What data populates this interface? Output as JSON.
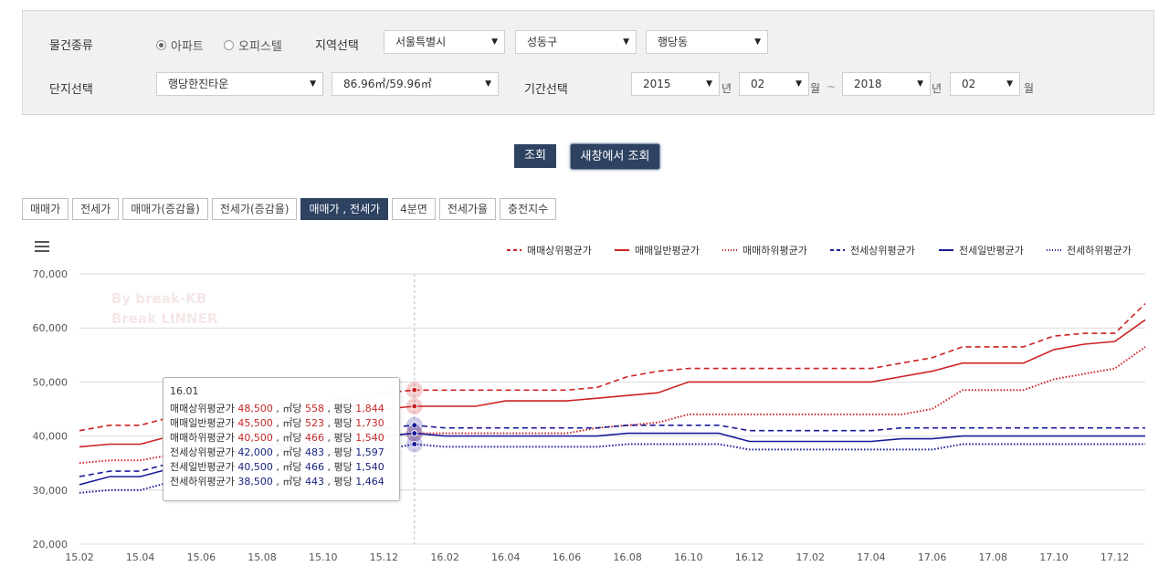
{
  "filters": {
    "property_type_label": "물건종류",
    "property_options": [
      {
        "label": "아파트",
        "selected": true
      },
      {
        "label": "오피스텔",
        "selected": false
      }
    ],
    "region_label": "지역선택",
    "region_city": "서울특별시",
    "region_district": "성동구",
    "region_dong": "행당동",
    "complex_label": "단지선택",
    "complex_value": "행당한진타운",
    "area_value": "86.96㎡/59.96㎡",
    "period_label": "기간선택",
    "start_year": "2015",
    "year_unit": "년",
    "start_month": "02",
    "month_unit": "월",
    "range_sep": "~",
    "end_year": "2018",
    "end_month": "02"
  },
  "actions": {
    "query_label": "조회",
    "new_window_label": "새창에서 조회"
  },
  "tabs": [
    {
      "label": "매매가",
      "active": false
    },
    {
      "label": "전세가",
      "active": false
    },
    {
      "label": "매매가(증감율)",
      "active": false
    },
    {
      "label": "전세가(증감율)",
      "active": false
    },
    {
      "label": "매매가 , 전세가",
      "active": true
    },
    {
      "label": "4분면",
      "active": false
    },
    {
      "label": "전세가율",
      "active": false
    },
    {
      "label": "충전지수",
      "active": false
    }
  ],
  "watermark": {
    "line1": "By break-KB",
    "line2": "Break LINNER"
  },
  "chart_data": {
    "type": "line",
    "ylim": [
      20000,
      70000
    ],
    "yticks": [
      "20,000",
      "30,000",
      "40,000",
      "50,000",
      "60,000",
      "70,000"
    ],
    "x_tick_labels": [
      "15.02",
      "15.04",
      "15.06",
      "15.08",
      "15.10",
      "15.12",
      "16.02",
      "16.04",
      "16.06",
      "16.08",
      "16.10",
      "16.12",
      "17.02",
      "17.04",
      "17.06",
      "17.08",
      "17.10",
      "17.12"
    ],
    "x": [
      "15.02",
      "15.03",
      "15.04",
      "15.05",
      "15.06",
      "15.07",
      "15.08",
      "15.09",
      "15.10",
      "15.11",
      "15.12",
      "16.01",
      "16.02",
      "16.03",
      "16.04",
      "16.05",
      "16.06",
      "16.07",
      "16.08",
      "16.09",
      "16.10",
      "16.11",
      "16.12",
      "17.01",
      "17.02",
      "17.03",
      "17.04",
      "17.05",
      "17.06",
      "17.07",
      "17.08",
      "17.09",
      "17.10",
      "17.11",
      "17.12",
      "18.01"
    ],
    "legend_position": "top-right",
    "grid": true,
    "series": [
      {
        "name": "매매상위평균가",
        "color": "#cc2222",
        "dash": "dashed",
        "values": [
          41000,
          42000,
          42000,
          43500,
          44500,
          45000,
          45500,
          46000,
          46500,
          47000,
          48000,
          48500,
          48500,
          48500,
          48500,
          48500,
          48500,
          49000,
          51000,
          52000,
          52500,
          52500,
          52500,
          52500,
          52500,
          52500,
          52500,
          53500,
          54500,
          56500,
          56500,
          56500,
          58500,
          59000,
          59000,
          64500
        ]
      },
      {
        "name": "매매일반평균가",
        "color": "#cc2222",
        "dash": "solid",
        "values": [
          38000,
          38500,
          38500,
          40000,
          41000,
          42000,
          43000,
          43500,
          44000,
          44500,
          45000,
          45500,
          45500,
          45500,
          46500,
          46500,
          46500,
          47000,
          47500,
          48000,
          50000,
          50000,
          50000,
          50000,
          50000,
          50000,
          50000,
          51000,
          52000,
          53500,
          53500,
          53500,
          56000,
          57000,
          57500,
          61500
        ]
      },
      {
        "name": "매매하위평균가",
        "color": "#cc2222",
        "dash": "dotted",
        "values": [
          35000,
          35500,
          35500,
          36500,
          37000,
          37500,
          38000,
          38500,
          39000,
          39500,
          40000,
          40500,
          40500,
          40500,
          40500,
          40500,
          40500,
          41500,
          42000,
          42500,
          44000,
          44000,
          44000,
          44000,
          44000,
          44000,
          44000,
          44000,
          45000,
          48500,
          48500,
          48500,
          50500,
          51500,
          52500,
          56500
        ]
      },
      {
        "name": "전세상위평균가",
        "color": "#1a1a9c",
        "dash": "dashed",
        "values": [
          32500,
          33500,
          33500,
          35000,
          36000,
          37000,
          38000,
          39000,
          40000,
          41000,
          41500,
          42000,
          41500,
          41500,
          41500,
          41500,
          41500,
          41500,
          42000,
          42000,
          42000,
          42000,
          41000,
          41000,
          41000,
          41000,
          41000,
          41500,
          41500,
          41500,
          41500,
          41500,
          41500,
          41500,
          41500,
          41500
        ]
      },
      {
        "name": "전세일반평균가",
        "color": "#1a1a9c",
        "dash": "solid",
        "values": [
          31000,
          32500,
          32500,
          34000,
          35000,
          36000,
          37000,
          38000,
          39000,
          39500,
          40000,
          40500,
          40000,
          40000,
          40000,
          40000,
          40000,
          40000,
          40500,
          40500,
          40500,
          40500,
          39000,
          39000,
          39000,
          39000,
          39000,
          39500,
          39500,
          40000,
          40000,
          40000,
          40000,
          40000,
          40000,
          40000
        ]
      },
      {
        "name": "전세하위평균가",
        "color": "#1a1a9c",
        "dash": "dotted",
        "values": [
          29500,
          30000,
          30000,
          31500,
          32500,
          33500,
          34500,
          35500,
          36500,
          37000,
          37500,
          38500,
          38000,
          38000,
          38000,
          38000,
          38000,
          38000,
          38500,
          38500,
          38500,
          38500,
          37500,
          37500,
          37500,
          37500,
          37500,
          37500,
          37500,
          38500,
          38500,
          38500,
          38500,
          38500,
          38500,
          38500
        ]
      }
    ],
    "tooltip": {
      "date": "16.01",
      "rows": [
        {
          "name": "매매상위평균가",
          "price": "48,500",
          "sqm_label": "㎡당",
          "sqm": "558",
          "pyeong_label": "평당",
          "pyeong": "1,844",
          "color": "red"
        },
        {
          "name": "매매일반평균가",
          "price": "45,500",
          "sqm_label": "㎡당",
          "sqm": "523",
          "pyeong_label": "평당",
          "pyeong": "1,730",
          "color": "red"
        },
        {
          "name": "매매하위평균가",
          "price": "40,500",
          "sqm_label": "㎡당",
          "sqm": "466",
          "pyeong_label": "평당",
          "pyeong": "1,540",
          "color": "red"
        },
        {
          "name": "전세상위평균가",
          "price": "42,000",
          "sqm_label": "㎡당",
          "sqm": "483",
          "pyeong_label": "평당",
          "pyeong": "1,597",
          "color": "blue"
        },
        {
          "name": "전세일반평균가",
          "price": "40,500",
          "sqm_label": "㎡당",
          "sqm": "466",
          "pyeong_label": "평당",
          "pyeong": "1,540",
          "color": "blue"
        },
        {
          "name": "전세하위평균가",
          "price": "38,500",
          "sqm_label": "㎡당",
          "sqm": "443",
          "pyeong_label": "평당",
          "pyeong": "1,464",
          "color": "blue"
        }
      ]
    }
  }
}
